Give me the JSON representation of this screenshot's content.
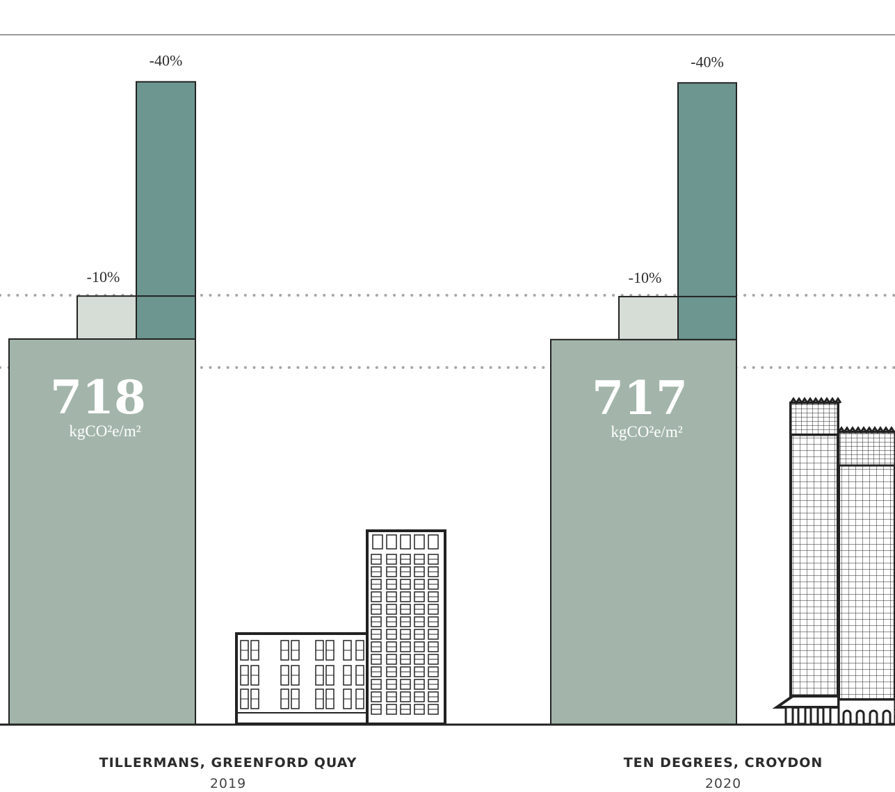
{
  "colors": {
    "base": "#a3b5aa",
    "small_reduction": "#d6dcd6",
    "large_reduction": "#6d9690",
    "outline": "#222222",
    "guide_solid": "#9a9a9a",
    "guide_dotted": "#a8a8a8"
  },
  "chart_data": {
    "type": "bar",
    "title": "",
    "unit": "kgCO²e/m²",
    "projects": [
      {
        "name": "TILLERMANS, GREENFORD QUAY",
        "year": "2019",
        "value": 718,
        "value_label": "718",
        "reductions": [
          {
            "label": "-10%",
            "fraction": 0.1,
            "level": 798
          },
          {
            "label": "-40%",
            "fraction": 0.4,
            "level": 1197
          }
        ],
        "illustration": "building-icon-tillermans"
      },
      {
        "name": "TEN DEGREES, CROYDON",
        "year": "2020",
        "value": 717,
        "value_label": "717",
        "reductions": [
          {
            "label": "-10%",
            "fraction": 0.1,
            "level": 797
          },
          {
            "label": "-40%",
            "fraction": 0.4,
            "level": 1195
          }
        ],
        "illustration": "building-icon-ten-degrees"
      }
    ],
    "reference_lines": [
      {
        "style": "solid",
        "level": 1197
      },
      {
        "style": "dotted",
        "level": 798
      },
      {
        "style": "dotted",
        "level": 718
      }
    ]
  }
}
